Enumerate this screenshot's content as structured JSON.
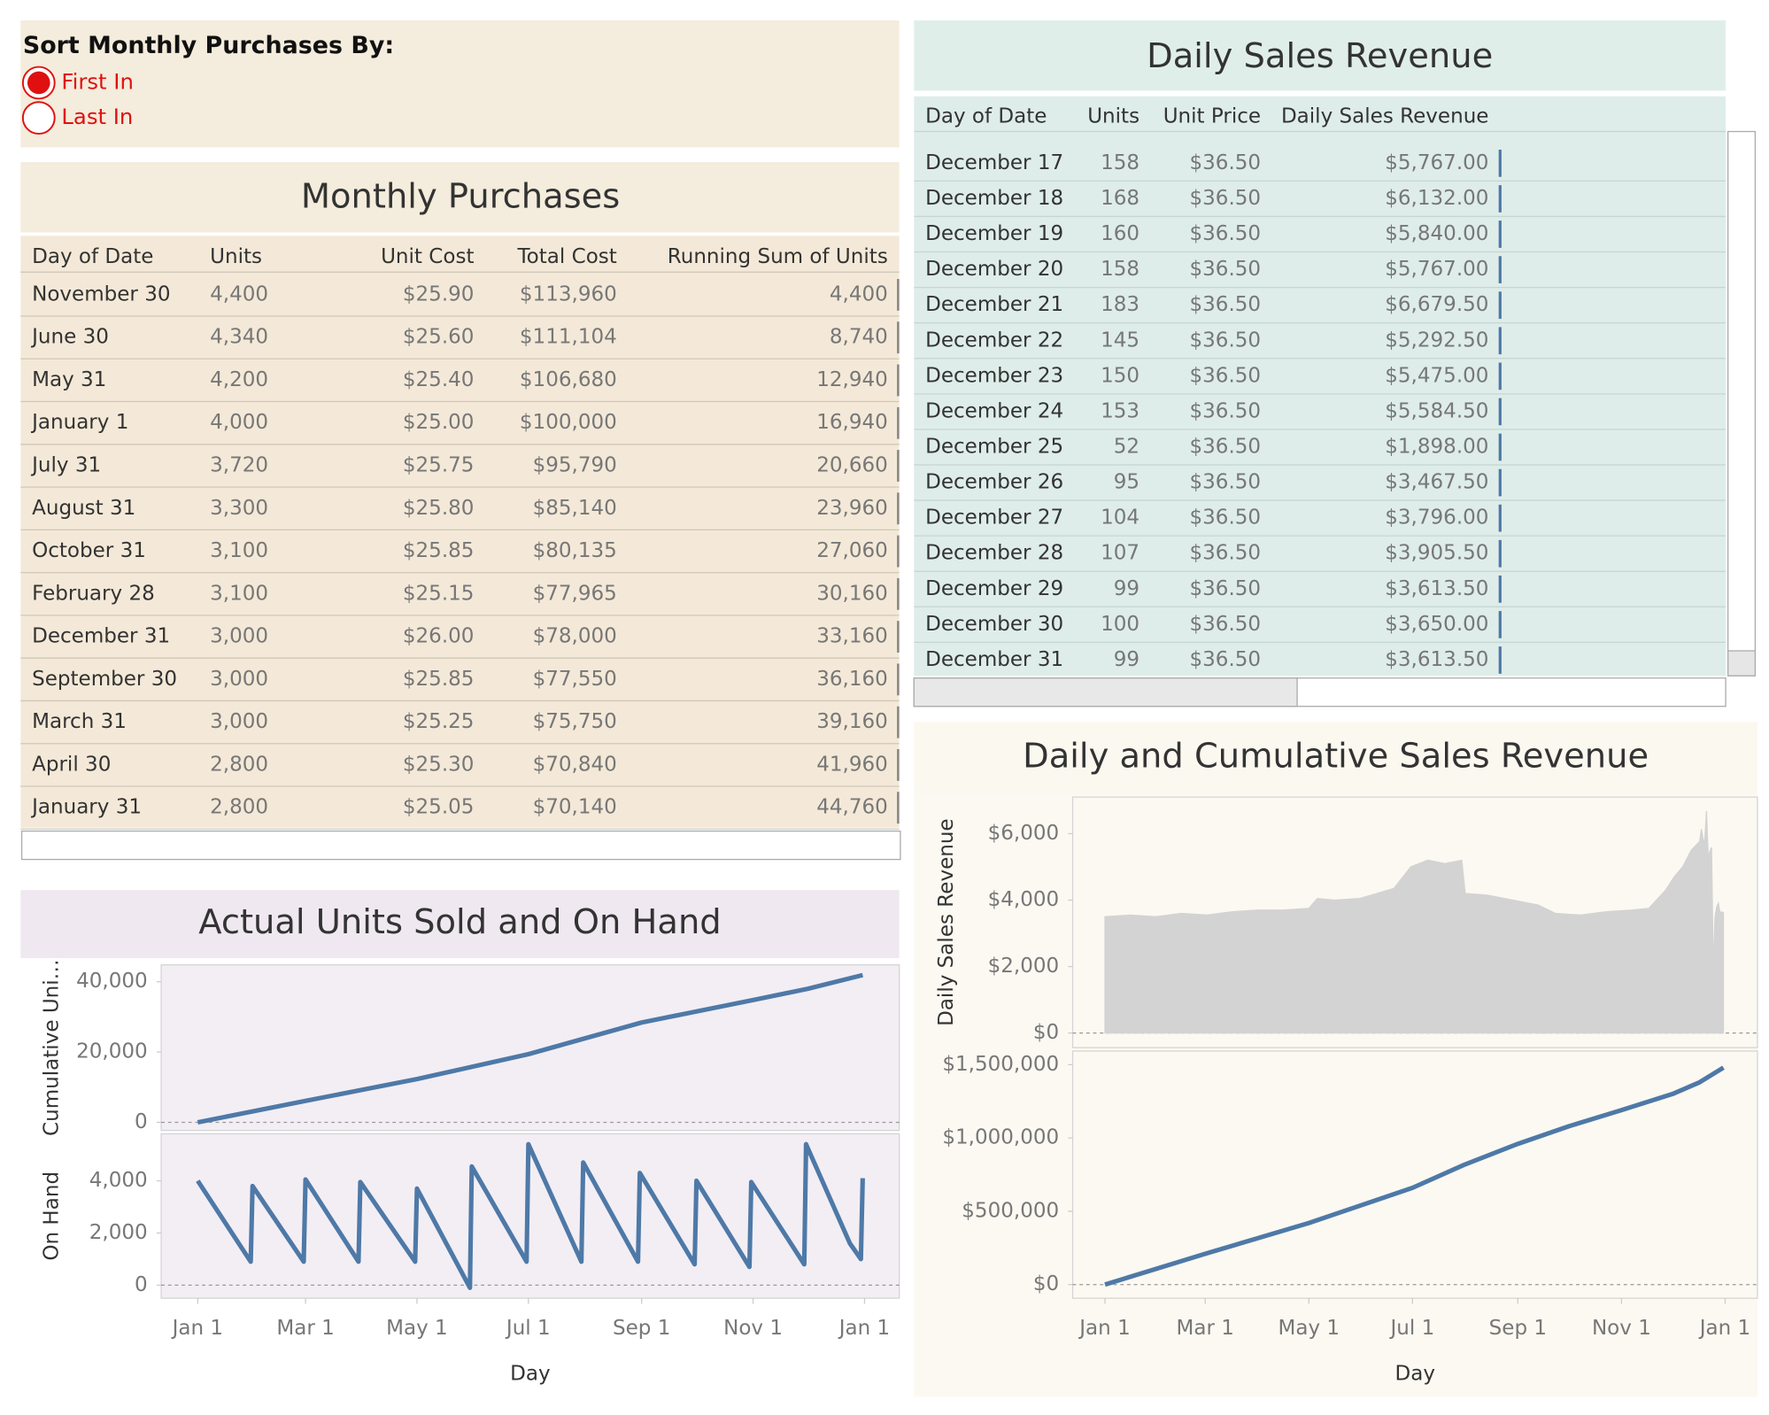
{
  "sort_control": {
    "title": "Sort Monthly Purchases By:",
    "options": [
      "First In",
      "Last In"
    ],
    "selected": 0
  },
  "monthly_purchases": {
    "title": "Monthly Purchases",
    "columns": [
      "Day of Date",
      "Units",
      "Unit Cost",
      "Total Cost",
      "Running Sum of Units"
    ],
    "rows": [
      [
        "November 30",
        "4,400",
        "$25.90",
        "$113,960",
        "4,400"
      ],
      [
        "June 30",
        "4,340",
        "$25.60",
        "$111,104",
        "8,740"
      ],
      [
        "May 31",
        "4,200",
        "$25.40",
        "$106,680",
        "12,940"
      ],
      [
        "January 1",
        "4,000",
        "$25.00",
        "$100,000",
        "16,940"
      ],
      [
        "July 31",
        "3,720",
        "$25.75",
        "$95,790",
        "20,660"
      ],
      [
        "August 31",
        "3,300",
        "$25.80",
        "$85,140",
        "23,960"
      ],
      [
        "October 31",
        "3,100",
        "$25.85",
        "$80,135",
        "27,060"
      ],
      [
        "February 28",
        "3,100",
        "$25.15",
        "$77,965",
        "30,160"
      ],
      [
        "December 31",
        "3,000",
        "$26.00",
        "$78,000",
        "33,160"
      ],
      [
        "September 30",
        "3,000",
        "$25.85",
        "$77,550",
        "36,160"
      ],
      [
        "March 31",
        "3,000",
        "$25.25",
        "$75,750",
        "39,160"
      ],
      [
        "April 30",
        "2,800",
        "$25.30",
        "$70,840",
        "41,960"
      ],
      [
        "January 31",
        "2,800",
        "$25.05",
        "$70,140",
        "44,760"
      ]
    ]
  },
  "daily_sales": {
    "title": "Daily Sales Revenue",
    "columns": [
      "Day of Date",
      "Units",
      "Unit Price",
      "Daily Sales Revenue"
    ],
    "rows": [
      [
        "December 17",
        "158",
        "$36.50",
        "$5,767.00"
      ],
      [
        "December 18",
        "168",
        "$36.50",
        "$6,132.00"
      ],
      [
        "December 19",
        "160",
        "$36.50",
        "$5,840.00"
      ],
      [
        "December 20",
        "158",
        "$36.50",
        "$5,767.00"
      ],
      [
        "December 21",
        "183",
        "$36.50",
        "$6,679.50"
      ],
      [
        "December 22",
        "145",
        "$36.50",
        "$5,292.50"
      ],
      [
        "December 23",
        "150",
        "$36.50",
        "$5,475.00"
      ],
      [
        "December 24",
        "153",
        "$36.50",
        "$5,584.50"
      ],
      [
        "December 25",
        "52",
        "$36.50",
        "$1,898.00"
      ],
      [
        "December 26",
        "95",
        "$36.50",
        "$3,467.50"
      ],
      [
        "December 27",
        "104",
        "$36.50",
        "$3,796.00"
      ],
      [
        "December 28",
        "107",
        "$36.50",
        "$3,905.50"
      ],
      [
        "December 29",
        "99",
        "$36.50",
        "$3,613.50"
      ],
      [
        "December 30",
        "100",
        "$36.50",
        "$3,650.00"
      ],
      [
        "December 31",
        "99",
        "$36.50",
        "$3,613.50"
      ]
    ]
  },
  "units_chart": {
    "title": "Actual Units Sold and On Hand",
    "x_label": "Day",
    "xlim": [
      -20,
      384
    ],
    "xticks": [
      {
        "value": 0,
        "label": "Jan 1"
      },
      {
        "value": 59,
        "label": "Mar 1"
      },
      {
        "value": 120,
        "label": "May 1"
      },
      {
        "value": 181,
        "label": "Jul 1"
      },
      {
        "value": 243,
        "label": "Sep 1"
      },
      {
        "value": 304,
        "label": "Nov 1"
      },
      {
        "value": 365,
        "label": "Jan 1"
      }
    ],
    "panels": [
      {
        "type": "line",
        "y_label": "Cumulative Uni…",
        "color": "#4e79a7",
        "x": [
          0,
          59,
          120,
          181,
          243,
          304,
          334,
          364
        ],
        "values": [
          0,
          6100,
          12300,
          19400,
          28400,
          34800,
          38000,
          41900
        ],
        "ylim": [
          -2300,
          44800
        ],
        "yticks": [
          0,
          {
            "value": 20000,
            "label": "20,000"
          },
          {
            "value": 40000,
            "label": "40,000"
          }
        ]
      },
      {
        "type": "line",
        "y_label": "On Hand",
        "color": "#4e79a7",
        "x": [
          0,
          29,
          30,
          58,
          59,
          88,
          89,
          119,
          120,
          149,
          150,
          180,
          181,
          210,
          211,
          241,
          242,
          272,
          273,
          302,
          303,
          332,
          333,
          357,
          363,
          364
        ],
        "values": [
          4000,
          900,
          3800,
          900,
          4050,
          900,
          3950,
          900,
          3700,
          -100,
          4550,
          900,
          5400,
          900,
          4700,
          900,
          4300,
          800,
          4000,
          700,
          3950,
          800,
          5400,
          1600,
          1000,
          4100
        ],
        "ylim": [
          -500,
          5800
        ],
        "yticks": [
          0,
          {
            "value": 2000,
            "label": "2,000"
          },
          {
            "value": 4000,
            "label": "4,000"
          }
        ]
      }
    ]
  },
  "revenue_chart": {
    "title": "Daily and Cumulative Sales Revenue",
    "x_label": "Day",
    "xlim": [
      -19,
      384
    ],
    "xticks": [
      {
        "value": 0,
        "label": "Jan 1"
      },
      {
        "value": 59,
        "label": "Mar 1"
      },
      {
        "value": 120,
        "label": "May 1"
      },
      {
        "value": 181,
        "label": "Jul 1"
      },
      {
        "value": 243,
        "label": "Sep 1"
      },
      {
        "value": 304,
        "label": "Nov 1"
      },
      {
        "value": 365,
        "label": "Jan 1"
      }
    ],
    "panels": [
      {
        "type": "area",
        "y_label": "Daily Sales Revenue",
        "color": "#d3d3d3",
        "x": [
          0,
          15,
          30,
          45,
          60,
          75,
          90,
          105,
          120,
          125,
          135,
          150,
          160,
          170,
          180,
          190,
          200,
          210,
          212,
          225,
          240,
          255,
          265,
          280,
          295,
          310,
          320,
          330,
          335,
          340,
          345,
          350,
          351,
          352,
          353,
          354,
          355,
          356,
          357,
          358,
          359,
          360,
          361,
          362,
          363,
          364
        ],
        "values": [
          3500,
          3550,
          3500,
          3600,
          3550,
          3650,
          3700,
          3700,
          3750,
          4050,
          4000,
          4050,
          4200,
          4350,
          5000,
          5200,
          5100,
          5200,
          4200,
          4150,
          4000,
          3850,
          3600,
          3550,
          3650,
          3700,
          3750,
          4300,
          4700,
          5000,
          5500,
          5767,
          6132,
          5840,
          5767,
          6679.5,
          5292.5,
          5475,
          5584.5,
          1898,
          3467.5,
          3796,
          3905.5,
          3613.5,
          3650,
          3613.5
        ],
        "ylim": [
          -440,
          7100
        ],
        "yticks": [
          {
            "value": 0,
            "label": "$0"
          },
          {
            "value": 2000,
            "label": "$2,000"
          },
          {
            "value": 4000,
            "label": "$4,000"
          },
          {
            "value": 6000,
            "label": "$6,000"
          }
        ]
      },
      {
        "type": "line",
        "color": "#4e79a7",
        "x": [
          0,
          59,
          120,
          181,
          212,
          243,
          273,
          304,
          334,
          350,
          364
        ],
        "values": [
          0,
          210000,
          420000,
          660000,
          820000,
          960000,
          1080000,
          1190000,
          1300000,
          1380000,
          1480000
        ],
        "ylim": [
          -93000,
          1593000
        ],
        "yticks": [
          {
            "value": 0,
            "label": "$0"
          },
          {
            "value": 500000,
            "label": "$500,000"
          },
          {
            "value": 1000000,
            "label": "$1,000,000"
          },
          {
            "value": 1500000,
            "label": "$1,500,000"
          }
        ]
      }
    ]
  }
}
